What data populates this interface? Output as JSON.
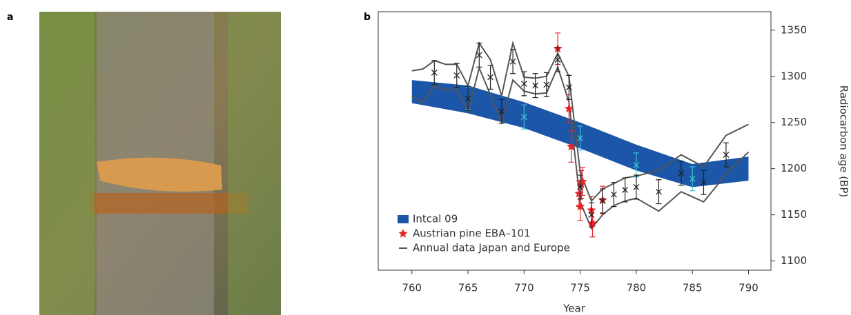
{
  "panel_labels": [
    "a",
    "b"
  ],
  "chart_data": {
    "type": "line",
    "xlabel": "Year",
    "ylabel": "Radiocarbon age (BP)",
    "xlim": [
      757,
      792
    ],
    "ylim": [
      1090,
      1370
    ],
    "xticks": [
      760,
      765,
      770,
      775,
      780,
      785,
      790
    ],
    "yticks": [
      1100,
      1150,
      1200,
      1250,
      1300,
      1350
    ],
    "yaxis_side": "right",
    "legend": "lower left",
    "series": [
      {
        "name": "Intcal 09",
        "kind": "band",
        "color": "#1b56a8",
        "x": [
          760,
          765,
          770,
          775,
          780,
          785,
          790
        ],
        "lower": [
          1271,
          1260,
          1244,
          1222,
          1198,
          1180,
          1187
        ],
        "upper": [
          1296,
          1290,
          1272,
          1250,
          1226,
          1205,
          1213
        ]
      },
      {
        "kind": "points",
        "marker": "x",
        "color": "#3fc3d8",
        "x": [
          765,
          770,
          775,
          780,
          785
        ],
        "values": [
          1276,
          1256,
          1233,
          1204,
          1189
        ],
        "errors": [
          12,
          13,
          13,
          13,
          13
        ]
      },
      {
        "name": "Austrian pine EBA–101",
        "kind": "points",
        "marker": "star",
        "color": "#e3262b",
        "x": [
          773,
          774,
          774.2,
          774.9,
          775,
          775.1,
          775.2,
          776,
          776.1,
          777
        ],
        "values": [
          1330,
          1265,
          1224,
          1173,
          1159,
          1183,
          1186,
          1155,
          1141,
          1166
        ],
        "errors": [
          17,
          15,
          17,
          14,
          15,
          15,
          15,
          15,
          15,
          15
        ]
      },
      {
        "name": "Annual data Japan and Europe",
        "kind": "envelope",
        "color": "#555555",
        "x": [
          760,
          761,
          762,
          763,
          764,
          765,
          766,
          767,
          768,
          769,
          770,
          771,
          772,
          773,
          774,
          775,
          776,
          777,
          778,
          779,
          780,
          782,
          784,
          786,
          788,
          790
        ],
        "upper": [
          1306,
          1308,
          1317,
          1313,
          1313,
          1290,
          1336,
          1318,
          1279,
          1336,
          1299,
          1298,
          1300,
          1325,
          1300,
          1196,
          1165,
          1178,
          1184,
          1190,
          1192,
          1198,
          1215,
          1202,
          1236,
          1248
        ],
        "lower": [
          1278,
          1272,
          1290,
          1285,
          1286,
          1262,
          1309,
          1280,
          1250,
          1296,
          1284,
          1281,
          1282,
          1310,
          1272,
          1164,
          1135,
          1150,
          1160,
          1165,
          1168,
          1154,
          1175,
          1164,
          1194,
          1218
        ]
      },
      {
        "kind": "points",
        "marker": "x",
        "color": "#222222",
        "x": [
          762,
          764,
          765,
          766,
          767,
          768,
          769,
          770,
          771,
          772,
          773,
          774,
          775,
          776,
          777,
          778,
          779,
          780,
          782,
          784,
          786,
          788
        ],
        "values": [
          1304,
          1301,
          1276,
          1323,
          1299,
          1262,
          1316,
          1292,
          1290,
          1291,
          1318,
          1288,
          1180,
          1150,
          1165,
          1172,
          1177,
          1180,
          1175,
          1195,
          1185,
          1215
        ],
        "errors": [
          13,
          13,
          13,
          13,
          13,
          13,
          13,
          13,
          13,
          13,
          13,
          13,
          13,
          13,
          13,
          13,
          13,
          13,
          13,
          13,
          13,
          13
        ]
      }
    ]
  }
}
